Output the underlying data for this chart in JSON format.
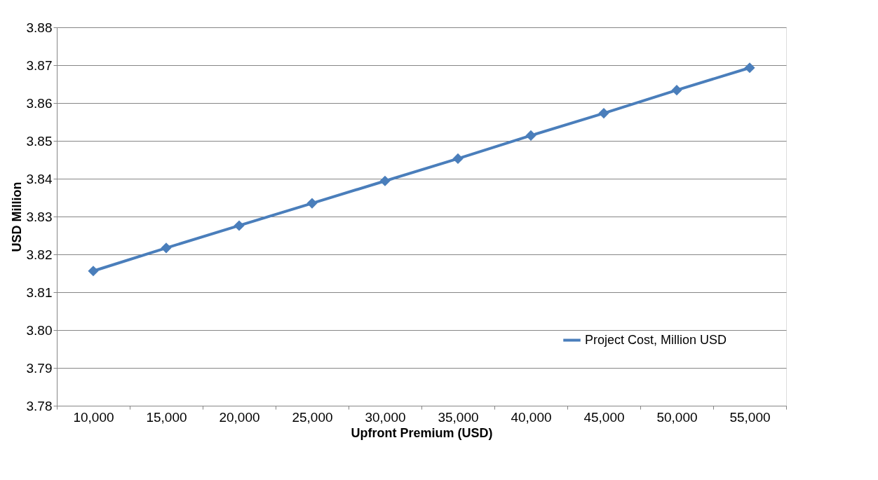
{
  "chart_data": {
    "type": "line",
    "xlabel": "Upfront Premium (USD)",
    "ylabel": "USD Million",
    "categories": [
      "10,000",
      "15,000",
      "20,000",
      "25,000",
      "30,000",
      "35,000",
      "40,000",
      "45,000",
      "50,000",
      "55,000"
    ],
    "series": [
      {
        "name": "Project Cost, Million USD",
        "color": "#4a7ebb",
        "values": [
          3.8156,
          3.8217,
          3.8276,
          3.8335,
          3.8394,
          3.8453,
          3.8514,
          3.8573,
          3.8634,
          3.8693
        ]
      }
    ],
    "ylim": [
      3.78,
      3.88
    ],
    "yticks": [
      {
        "value": 3.78,
        "label": "3.78"
      },
      {
        "value": 3.79,
        "label": "3.79"
      },
      {
        "value": 3.8,
        "label": "3.80"
      },
      {
        "value": 3.81,
        "label": "3.81"
      },
      {
        "value": 3.82,
        "label": "3.82"
      },
      {
        "value": 3.83,
        "label": "3.83"
      },
      {
        "value": 3.84,
        "label": "3.84"
      },
      {
        "value": 3.85,
        "label": "3.85"
      },
      {
        "value": 3.86,
        "label": "3.86"
      },
      {
        "value": 3.87,
        "label": "3.87"
      },
      {
        "value": 3.88,
        "label": "3.88"
      }
    ],
    "grid": "y",
    "legend": "bottom right",
    "marker": "diamond",
    "line_style": "solid"
  }
}
